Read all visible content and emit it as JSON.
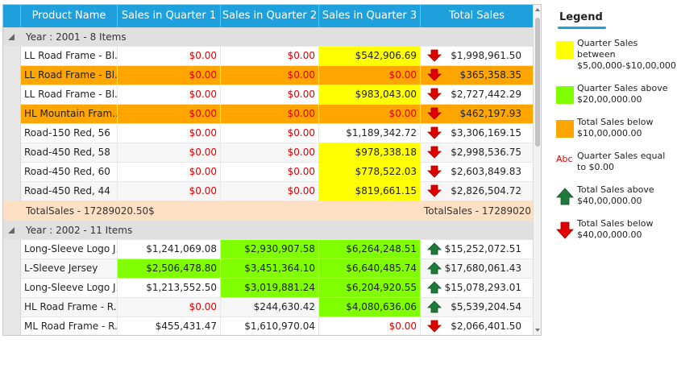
{
  "columns": [
    "Product Name",
    "Sales in Quarter 1",
    "Sales in Quarter 2",
    "Sales in Quarter 3",
    "Total Sales"
  ],
  "colors": {
    "yellow": "#ffff00",
    "green": "#7fff00",
    "orange": "#ffa500",
    "header": "#1ea0dc",
    "red": "#e10000"
  },
  "groups": [
    {
      "label": "Year : 2001 - 8 Items",
      "rows": [
        {
          "name": "LL Road Frame - Bl...",
          "q1": "$0.00",
          "q2": "$0.00",
          "q3": "$542,906.69",
          "arrow": "down",
          "total": "$1,998,961.50",
          "row_color": "",
          "q1c": "",
          "q2c": "",
          "q3c": "yellow"
        },
        {
          "name": "LL Road Frame - Bl...",
          "q1": "$0.00",
          "q2": "$0.00",
          "q3": "$0.00",
          "arrow": "down",
          "total": "$365,358.35",
          "row_color": "orange",
          "q1c": "",
          "q2c": "",
          "q3c": ""
        },
        {
          "name": "LL Road Frame - Bl...",
          "q1": "$0.00",
          "q2": "$0.00",
          "q3": "$983,043.00",
          "arrow": "down",
          "total": "$2,727,442.29",
          "row_color": "",
          "q1c": "",
          "q2c": "",
          "q3c": "yellow"
        },
        {
          "name": "HL Mountain Fram...",
          "q1": "$0.00",
          "q2": "$0.00",
          "q3": "$0.00",
          "arrow": "down",
          "total": "$462,197.93",
          "row_color": "orange",
          "q1c": "",
          "q2c": "",
          "q3c": ""
        },
        {
          "name": "Road-150 Red, 56",
          "q1": "$0.00",
          "q2": "$0.00",
          "q3": "$1,189,342.72",
          "arrow": "down",
          "total": "$3,306,169.15",
          "row_color": "",
          "q1c": "",
          "q2c": "",
          "q3c": ""
        },
        {
          "name": "Road-450 Red, 58",
          "q1": "$0.00",
          "q2": "$0.00",
          "q3": "$978,338.18",
          "arrow": "down",
          "total": "$2,998,536.75",
          "row_color": "",
          "q1c": "",
          "q2c": "",
          "q3c": "yellow"
        },
        {
          "name": "Road-450 Red, 60",
          "q1": "$0.00",
          "q2": "$0.00",
          "q3": "$778,522.03",
          "arrow": "down",
          "total": "$2,603,849.83",
          "row_color": "",
          "q1c": "",
          "q2c": "",
          "q3c": "yellow"
        },
        {
          "name": "Road-450 Red, 44",
          "q1": "$0.00",
          "q2": "$0.00",
          "q3": "$819,661.15",
          "arrow": "down",
          "total": "$2,826,504.72",
          "row_color": "",
          "q1c": "",
          "q2c": "",
          "q3c": "yellow"
        }
      ],
      "summary_left": "TotalSales - 17289020.50$",
      "summary_right": "TotalSales - 17289020..."
    },
    {
      "label": "Year : 2002 - 11 Items",
      "rows": [
        {
          "name": "Long-Sleeve Logo J...",
          "q1": "$1,241,069.08",
          "q2": "$2,930,907.58",
          "q3": "$6,264,248.51",
          "arrow": "up",
          "total": "$15,252,072.51",
          "row_color": "",
          "q1c": "",
          "q2c": "green",
          "q3c": "green"
        },
        {
          "name": "L-Sleeve Jersey",
          "q1": "$2,506,478.80",
          "q2": "$3,451,364.10",
          "q3": "$6,640,485.74",
          "arrow": "up",
          "total": "$17,680,061.43",
          "row_color": "",
          "q1c": "green",
          "q2c": "green",
          "q3c": "green"
        },
        {
          "name": "Long-Sleeve Logo J...",
          "q1": "$1,213,552.50",
          "q2": "$3,019,881.24",
          "q3": "$6,204,920.55",
          "arrow": "up",
          "total": "$15,078,293.01",
          "row_color": "",
          "q1c": "",
          "q2c": "green",
          "q3c": "green"
        },
        {
          "name": "HL Road Frame - R...",
          "q1": "$0.00",
          "q2": "$244,630.42",
          "q3": "$4,080,636.06",
          "arrow": "up",
          "total": "$5,539,204.54",
          "row_color": "",
          "q1c": "",
          "q2c": "",
          "q3c": "green"
        },
        {
          "name": "ML Road Frame - R...",
          "q1": "$455,431.47",
          "q2": "$1,610,970.04",
          "q3": "$0.00",
          "arrow": "down",
          "total": "$2,066,401.50",
          "row_color": "",
          "q1c": "",
          "q2c": "",
          "q3c": ""
        }
      ]
    }
  ],
  "legend": {
    "title": "Legend",
    "items": [
      {
        "kind": "swatch",
        "color": "yellow",
        "text": "Quarter Sales between $5,00,000-$10,00,000.00"
      },
      {
        "kind": "swatch",
        "color": "green",
        "text": "Quarter Sales above $20,00,000.00"
      },
      {
        "kind": "swatch",
        "color": "orange",
        "text": "Total Sales below $10,00,000.00"
      },
      {
        "kind": "abc",
        "glyph": "Abc",
        "text": "Quarter Sales equal to $0.00"
      },
      {
        "kind": "up",
        "icon": "up-arrow-icon",
        "text": "Total Sales above $40,00,000.00"
      },
      {
        "kind": "down",
        "icon": "down-arrow-icon",
        "text": "Total Sales below $40,00,000.00"
      }
    ]
  }
}
